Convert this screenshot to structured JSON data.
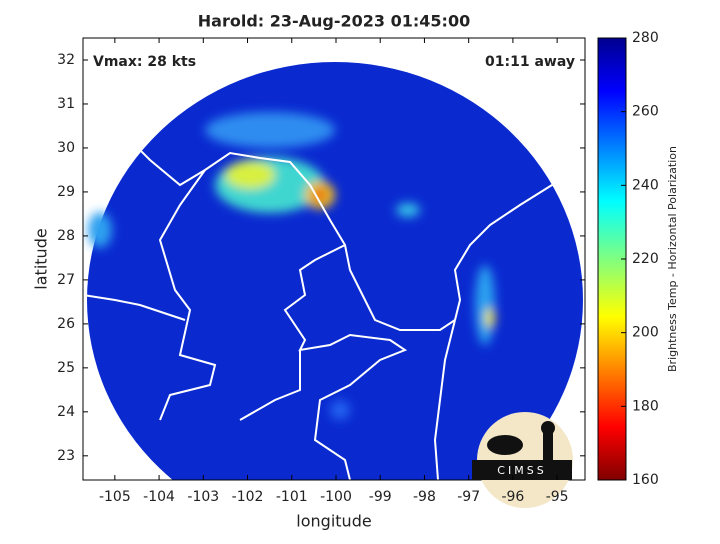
{
  "title": "Harold: 23-Aug-2023 01:45:00",
  "annotations": {
    "vmax": "Vmax: 28 kts",
    "time_away": "01:11 away"
  },
  "x_axis": {
    "label": "longitude",
    "lim": [
      -105.72,
      -94.37
    ],
    "ticks": [
      -105,
      -104,
      -103,
      -102,
      -101,
      -100,
      -99,
      -98,
      -97,
      -96,
      -95
    ]
  },
  "y_axis": {
    "label": "latitude",
    "lim": [
      22.45,
      32.5
    ],
    "ticks": [
      23,
      24,
      25,
      26,
      27,
      28,
      29,
      30,
      31,
      32
    ]
  },
  "colorbar": {
    "label": "Brightness Temp - Horizontal Polarization",
    "lim": [
      160,
      280
    ],
    "ticks": [
      160,
      180,
      200,
      220,
      240,
      260,
      280
    ]
  },
  "logo": {
    "text": "CIMSS"
  }
}
